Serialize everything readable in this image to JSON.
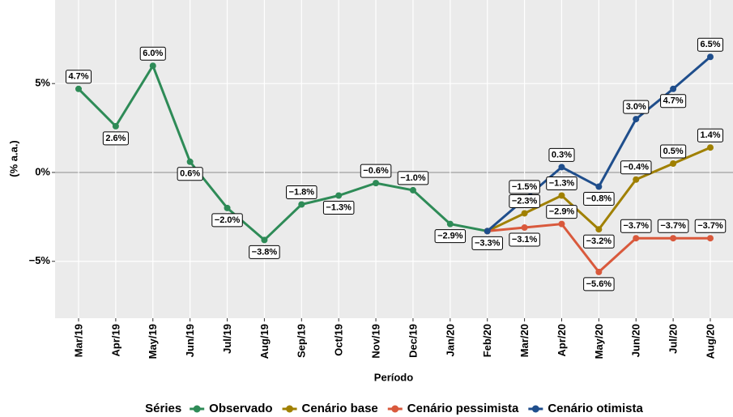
{
  "chart_data": {
    "type": "line",
    "x_label": "Período",
    "y_label": "(% a.a.)",
    "legend_title": "Séries",
    "categories": [
      "Mar/19",
      "Apr/19",
      "May/19",
      "Jun/19",
      "Jul/19",
      "Aug/19",
      "Sep/19",
      "Oct/19",
      "Nov/19",
      "Dec/19",
      "Jan/20",
      "Feb/20",
      "Mar/20",
      "Apr/20",
      "May/20",
      "Jun/20",
      "Jul/20",
      "Aug/20"
    ],
    "ylim": [
      -8.2,
      9.7
    ],
    "yticks": [
      {
        "value": 5,
        "label": "5%"
      },
      {
        "value": 0,
        "label": "0%"
      },
      {
        "value": -5,
        "label": "−5%"
      }
    ],
    "grid": true,
    "legend": "bottom",
    "series": [
      {
        "name": "Observado",
        "color": "#2e8b57",
        "values": [
          4.7,
          2.6,
          6.0,
          0.6,
          -2.0,
          -3.8,
          -1.8,
          -1.3,
          -0.6,
          -1.0,
          -2.9,
          -3.3,
          null,
          null,
          null,
          null,
          null,
          null
        ],
        "value_labels": [
          "4.7%",
          "2.6%",
          "6.0%",
          "0.6%",
          "−2.0%",
          "−3.8%",
          "−1.8%",
          "−1.3%",
          "−0.6%",
          "−1.0%",
          "−2.9%",
          "−3.3%",
          null,
          null,
          null,
          null,
          null,
          null
        ]
      },
      {
        "name": "Cenário base",
        "color": "#a08000",
        "values": [
          null,
          null,
          null,
          null,
          null,
          null,
          null,
          null,
          null,
          null,
          null,
          -3.3,
          -2.3,
          -1.3,
          -3.2,
          -0.4,
          0.5,
          1.4
        ],
        "value_labels": [
          null,
          null,
          null,
          null,
          null,
          null,
          null,
          null,
          null,
          null,
          null,
          null,
          "−2.3%",
          "−1.3%",
          "−3.2%",
          "−0.4%",
          "0.5%",
          "1.4%"
        ]
      },
      {
        "name": "Cenário pessimista",
        "color": "#d9593c",
        "values": [
          null,
          null,
          null,
          null,
          null,
          null,
          null,
          null,
          null,
          null,
          null,
          -3.3,
          -3.1,
          -2.9,
          -5.6,
          -3.7,
          -3.7,
          -3.7
        ],
        "value_labels": [
          null,
          null,
          null,
          null,
          null,
          null,
          null,
          null,
          null,
          null,
          null,
          null,
          "−3.1%",
          "−2.9%",
          "−5.6%",
          "−3.7%",
          "−3.7%",
          "−3.7%"
        ]
      },
      {
        "name": "Cenário otimista",
        "color": "#1f4e8c",
        "values": [
          null,
          null,
          null,
          null,
          null,
          null,
          null,
          null,
          null,
          null,
          null,
          -3.3,
          -1.5,
          0.3,
          -0.8,
          3.0,
          4.7,
          6.5
        ],
        "value_labels": [
          null,
          null,
          null,
          null,
          null,
          null,
          null,
          null,
          null,
          null,
          null,
          null,
          "−1.5%",
          "0.3%",
          "−0.8%",
          "3.0%",
          "4.7%",
          "6.5%"
        ]
      }
    ]
  }
}
